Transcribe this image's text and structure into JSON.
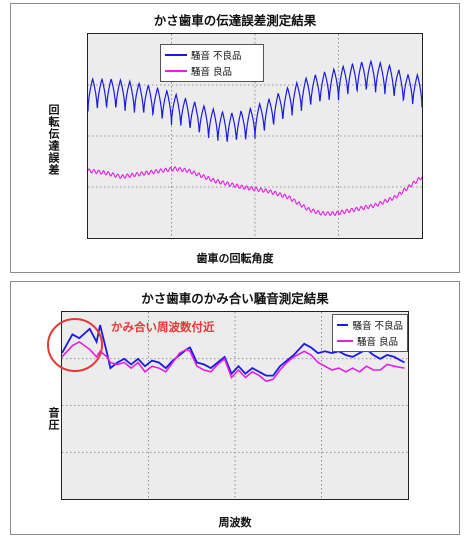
{
  "chart_data": [
    {
      "type": "line",
      "title": "かさ歯車の伝達誤差測定結果",
      "xlabel": "歯車の回転角度",
      "ylabel": "回転伝達誤差",
      "grid": true,
      "legend_position": "top-center",
      "x_range": [
        0,
        100
      ],
      "y_range": [
        0,
        100
      ],
      "series": [
        {
          "name": "騒音 不良品",
          "color": "#1a1ae6",
          "cycles": 36,
          "baseline": [
            [
              0,
              70
            ],
            [
              8,
              70
            ],
            [
              12,
              69
            ],
            [
              18,
              67
            ],
            [
              24,
              64
            ],
            [
              30,
              60
            ],
            [
              36,
              56
            ],
            [
              42,
              53
            ],
            [
              48,
              55
            ],
            [
              54,
              60
            ],
            [
              60,
              66
            ],
            [
              66,
              71
            ],
            [
              72,
              74
            ],
            [
              78,
              77
            ],
            [
              84,
              79
            ],
            [
              90,
              77
            ],
            [
              96,
              72
            ],
            [
              100,
              72
            ]
          ],
          "amplitude": 8
        },
        {
          "name": "騒音 良品",
          "color": "#e61ee6",
          "cycles": 70,
          "baseline": [
            [
              0,
              33
            ],
            [
              5,
              32
            ],
            [
              10,
              30
            ],
            [
              18,
              32
            ],
            [
              26,
              34
            ],
            [
              30,
              33
            ],
            [
              38,
              28
            ],
            [
              46,
              25
            ],
            [
              54,
              23
            ],
            [
              60,
              20
            ],
            [
              66,
              14
            ],
            [
              70,
              12
            ],
            [
              74,
              12
            ],
            [
              80,
              14
            ],
            [
              86,
              16
            ],
            [
              92,
              20
            ],
            [
              96,
              25
            ],
            [
              100,
              30
            ]
          ],
          "amplitude": 0.9
        }
      ]
    },
    {
      "type": "line",
      "title": "かさ歯車のかみ合い騒音測定結果",
      "xlabel": "周波数",
      "ylabel": "音圧",
      "grid": true,
      "legend_position": "top-right",
      "x_range": [
        0,
        100
      ],
      "y_range": [
        0,
        100
      ],
      "annotation": "かみ合い周波数付近",
      "series": [
        {
          "name": "騒音 不良品",
          "color": "#1a1ae6",
          "values": [
            [
              0,
              78
            ],
            [
              3,
              88
            ],
            [
              5,
              86
            ],
            [
              8,
              91
            ],
            [
              10,
              84
            ],
            [
              11,
              93
            ],
            [
              13,
              78
            ],
            [
              14,
              70
            ],
            [
              16,
              73
            ],
            [
              18,
              75
            ],
            [
              20,
              72
            ],
            [
              22,
              75
            ],
            [
              24,
              71
            ],
            [
              26,
              74
            ],
            [
              28,
              73
            ],
            [
              30,
              70
            ],
            [
              32,
              74
            ],
            [
              34,
              77
            ],
            [
              36,
              80
            ],
            [
              37,
              81
            ],
            [
              39,
              73
            ],
            [
              41,
              72
            ],
            [
              43,
              70
            ],
            [
              45,
              73
            ],
            [
              47,
              76
            ],
            [
              49,
              67
            ],
            [
              51,
              71
            ],
            [
              53,
              67
            ],
            [
              55,
              70
            ],
            [
              57,
              68
            ],
            [
              59,
              66
            ],
            [
              61,
              66
            ],
            [
              63,
              71
            ],
            [
              65,
              74
            ],
            [
              67,
              77
            ],
            [
              70,
              83
            ],
            [
              72,
              81
            ],
            [
              74,
              78
            ],
            [
              76,
              79
            ],
            [
              78,
              78
            ],
            [
              80,
              79
            ],
            [
              82,
              77
            ],
            [
              84,
              76
            ],
            [
              86,
              78
            ],
            [
              88,
              80
            ],
            [
              90,
              77
            ],
            [
              92,
              75
            ],
            [
              94,
              77
            ],
            [
              96,
              76
            ],
            [
              99,
              73
            ]
          ]
        },
        {
          "name": "騒音 良品",
          "color": "#e61ee6",
          "values": [
            [
              0,
              76
            ],
            [
              3,
              82
            ],
            [
              5,
              84
            ],
            [
              8,
              80
            ],
            [
              10,
              76
            ],
            [
              11,
              79
            ],
            [
              13,
              76
            ],
            [
              14,
              73
            ],
            [
              16,
              72
            ],
            [
              18,
              73
            ],
            [
              20,
              70
            ],
            [
              22,
              73
            ],
            [
              24,
              68
            ],
            [
              26,
              71
            ],
            [
              28,
              70
            ],
            [
              30,
              68
            ],
            [
              32,
              73
            ],
            [
              34,
              78
            ],
            [
              36,
              80
            ],
            [
              37,
              79
            ],
            [
              39,
              71
            ],
            [
              41,
              69
            ],
            [
              43,
              68
            ],
            [
              45,
              72
            ],
            [
              47,
              75
            ],
            [
              49,
              65
            ],
            [
              51,
              69
            ],
            [
              53,
              65
            ],
            [
              55,
              68
            ],
            [
              57,
              66
            ],
            [
              59,
              63
            ],
            [
              61,
              64
            ],
            [
              63,
              69
            ],
            [
              65,
              73
            ],
            [
              67,
              76
            ],
            [
              70,
              79
            ],
            [
              72,
              77
            ],
            [
              74,
              73
            ],
            [
              76,
              71
            ],
            [
              78,
              69
            ],
            [
              80,
              70
            ],
            [
              82,
              68
            ],
            [
              84,
              70
            ],
            [
              86,
              68
            ],
            [
              88,
              71
            ],
            [
              90,
              69
            ],
            [
              92,
              69
            ],
            [
              94,
              72
            ],
            [
              96,
              71
            ],
            [
              99,
              70
            ]
          ]
        }
      ]
    }
  ]
}
